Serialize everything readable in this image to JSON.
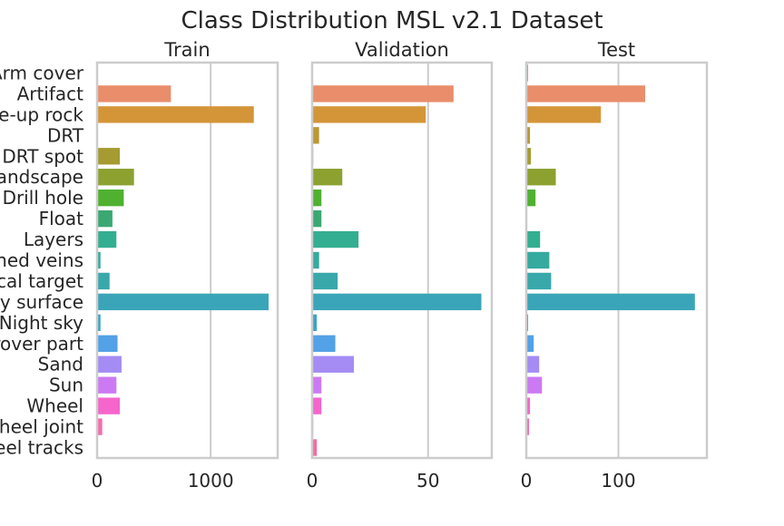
{
  "title": "Class Distribution MSL v2.1 Dataset",
  "categories": [
    "Arm cover",
    "Artifact",
    "Close-up rock",
    "DRT",
    "DRT spot",
    "Distant landscape",
    "Drill hole",
    "Float",
    "Layers",
    "Light-toned veins",
    "Mastcam cal target",
    "Nearby surface",
    "Night sky",
    "Other rover part",
    "Sand",
    "Sun",
    "Wheel",
    "Wheel joint",
    "Wheel tracks"
  ],
  "category_labels": [
    "Arm cover",
    "Artifact",
    "e-up rock",
    "DRT",
    "DRT spot",
    "andscape",
    "Drill hole",
    "Float",
    "Layers",
    "ned veins",
    "cal target",
    "by surface",
    "Night sky",
    "rover part",
    "Sand",
    "Sun",
    "Wheel",
    "Wheel joint",
    "eel tracks"
  ],
  "colors": [
    "#f77189",
    "#e98d6b",
    "#d49538",
    "#bb9832",
    "#a59b31",
    "#8ca130",
    "#50b131",
    "#3ba874",
    "#34ae91",
    "#36aa9f",
    "#38a8ab",
    "#3aa5b8",
    "#3ba3c6",
    "#53a1e6",
    "#a48cf4",
    "#cc7af4",
    "#f565cc",
    "#f66bad",
    "#f66ba1"
  ],
  "chart_data": [
    {
      "type": "bar",
      "orientation": "horizontal",
      "title": "Train",
      "categories": [
        "Arm cover",
        "Artifact",
        "Close-up rock",
        "DRT",
        "DRT spot",
        "Distant landscape",
        "Drill hole",
        "Float",
        "Layers",
        "Light-toned veins",
        "Mastcam cal target",
        "Nearby surface",
        "Night sky",
        "Other rover part",
        "Sand",
        "Sun",
        "Wheel",
        "Wheel joint",
        "Wheel tracks"
      ],
      "values": [
        5,
        650,
        1380,
        0,
        200,
        325,
        235,
        135,
        170,
        30,
        110,
        1510,
        30,
        180,
        215,
        170,
        200,
        45,
        0
      ],
      "xlim": [
        0,
        1590
      ],
      "xticks": [
        0,
        1000
      ],
      "xtick_labels": [
        "0",
        "1000"
      ]
    },
    {
      "type": "bar",
      "orientation": "horizontal",
      "title": "Validation",
      "categories": [
        "Arm cover",
        "Artifact",
        "Close-up rock",
        "DRT",
        "DRT spot",
        "Distant landscape",
        "Drill hole",
        "Float",
        "Layers",
        "Light-toned veins",
        "Mastcam cal target",
        "Nearby surface",
        "Night sky",
        "Other rover part",
        "Sand",
        "Sun",
        "Wheel",
        "Wheel joint",
        "Wheel tracks"
      ],
      "values": [
        0,
        61,
        49,
        3,
        0.5,
        13,
        4,
        4,
        20,
        3,
        11,
        73,
        2,
        10,
        18,
        4,
        4,
        0.5,
        2
      ],
      "xlim": [
        0,
        77.5
      ],
      "xticks": [
        0,
        50
      ],
      "xtick_labels": [
        "0",
        "50"
      ]
    },
    {
      "type": "bar",
      "orientation": "horizontal",
      "title": "Test",
      "categories": [
        "Arm cover",
        "Artifact",
        "Close-up rock",
        "DRT",
        "DRT spot",
        "Distant landscape",
        "Drill hole",
        "Float",
        "Layers",
        "Light-toned veins",
        "Mastcam cal target",
        "Nearby surface",
        "Night sky",
        "Other rover part",
        "Sand",
        "Sun",
        "Wheel",
        "Wheel joint",
        "Wheel tracks"
      ],
      "values": [
        2,
        129,
        81,
        4,
        5,
        32,
        10,
        0,
        15,
        25,
        27,
        183,
        2,
        8,
        14,
        17,
        4,
        3,
        0
      ],
      "xlim": [
        0,
        196
      ],
      "xticks": [
        0,
        100
      ],
      "xtick_labels": [
        "0",
        "100"
      ]
    }
  ]
}
